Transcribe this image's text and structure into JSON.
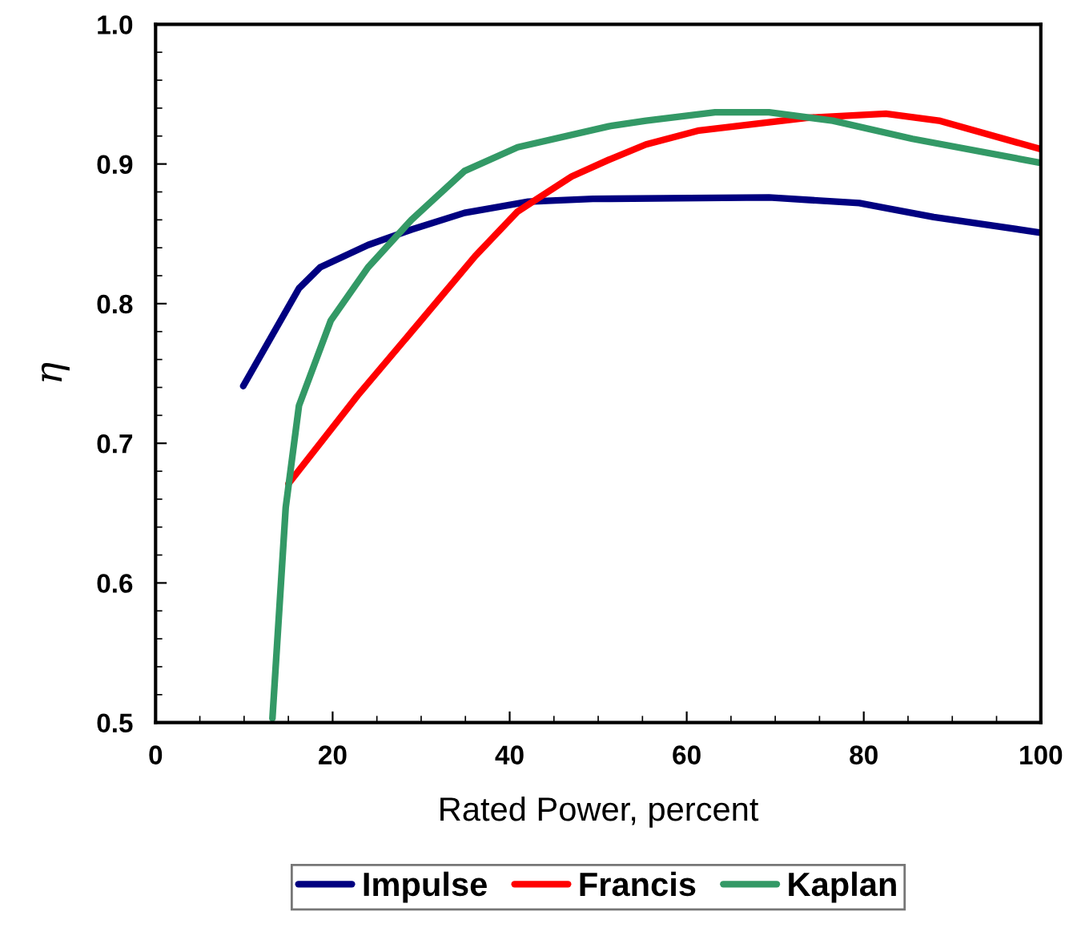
{
  "chart_data": {
    "type": "line",
    "xlabel": "Rated Power, percent",
    "ylabel": "η",
    "xlim": [
      0,
      100
    ],
    "xticks": [
      0,
      20,
      40,
      60,
      80,
      100
    ],
    "ylim": [
      0.5,
      1.0
    ],
    "yticks": [
      0.5,
      0.6,
      0.7,
      0.8,
      0.9,
      {
        "value": 1.0,
        "label": "1.0"
      }
    ],
    "grid": false,
    "legend": "bottom",
    "line_style": "solid",
    "marker": "none",
    "series": [
      {
        "name": "Impulse",
        "color": "#000080",
        "x": [
          9.9,
          16.2,
          18.6,
          24,
          28.9,
          34.9,
          42.1,
          49.4,
          69.3,
          79.5,
          87.9,
          99.8
        ],
        "values": [
          0.741,
          0.811,
          0.826,
          0.842,
          0.853,
          0.865,
          0.873,
          0.875,
          0.876,
          0.872,
          0.862,
          0.851
        ]
      },
      {
        "name": "Francis",
        "color": "#ff0000",
        "x": [
          15,
          22.8,
          30,
          36.1,
          40.9,
          47,
          51.2,
          55.4,
          61.4,
          73.5,
          82.5,
          88.5,
          99.8
        ],
        "values": [
          0.671,
          0.734,
          0.788,
          0.834,
          0.866,
          0.891,
          0.903,
          0.914,
          0.924,
          0.933,
          0.936,
          0.931,
          0.911
        ]
      },
      {
        "name": "Kaplan",
        "color": "#339966",
        "x": [
          13.2,
          14.7,
          16.2,
          19.8,
          24,
          28.9,
          34.9,
          40.9,
          51.2,
          55.4,
          63.2,
          69.3,
          76.5,
          85.5,
          99.8
        ],
        "values": [
          0.503,
          0.654,
          0.727,
          0.788,
          0.826,
          0.86,
          0.895,
          0.912,
          0.927,
          0.931,
          0.937,
          0.937,
          0.931,
          0.918,
          0.901
        ]
      }
    ]
  }
}
